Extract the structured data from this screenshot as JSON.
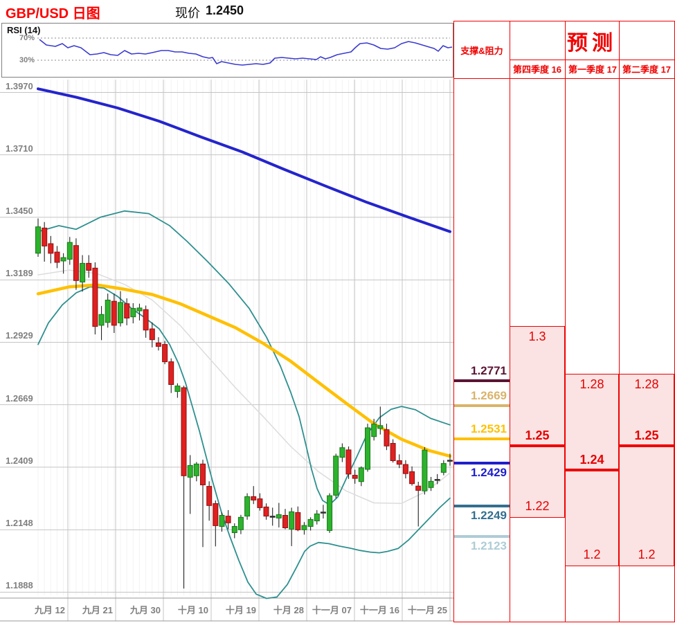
{
  "header": {
    "title": "GBP/USD 日图",
    "price_label": "现价",
    "price_value": "1.2450"
  },
  "rsi_panel": {
    "label": "RSI (14)",
    "upper_label": "70%",
    "lower_label": "30%",
    "upper_level": 70,
    "lower_level": 30,
    "points": [
      [
        57,
        67.5
      ],
      [
        67,
        57.5
      ],
      [
        80,
        55
      ],
      [
        90,
        60
      ],
      [
        98,
        52.5
      ],
      [
        107,
        56.3
      ],
      [
        117,
        52.5
      ],
      [
        130,
        40
      ],
      [
        140,
        41.3
      ],
      [
        150,
        43.8
      ],
      [
        160,
        40
      ],
      [
        170,
        38.8
      ],
      [
        180,
        47.5
      ],
      [
        190,
        41.3
      ],
      [
        200,
        42.5
      ],
      [
        210,
        41.3
      ],
      [
        220,
        43.8
      ],
      [
        233,
        47.5
      ],
      [
        243,
        47.5
      ],
      [
        253,
        45
      ],
      [
        263,
        45
      ],
      [
        273,
        42.5
      ],
      [
        283,
        41.3
      ],
      [
        293,
        36.3
      ],
      [
        302,
        33.8
      ],
      [
        307,
        35
      ],
      [
        313,
        23.8
      ],
      [
        320,
        27.5
      ],
      [
        330,
        25
      ],
      [
        340,
        22.5
      ],
      [
        350,
        21.3
      ],
      [
        360,
        22.5
      ],
      [
        370,
        23.8
      ],
      [
        380,
        22.5
      ],
      [
        390,
        25
      ],
      [
        397,
        33.8
      ],
      [
        407,
        35
      ],
      [
        417,
        33.8
      ],
      [
        427,
        32.5
      ],
      [
        437,
        33.8
      ],
      [
        447,
        32.5
      ],
      [
        457,
        31.3
      ],
      [
        463,
        36.3
      ],
      [
        470,
        32.5
      ],
      [
        477,
        35
      ],
      [
        487,
        40
      ],
      [
        497,
        42.5
      ],
      [
        507,
        45
      ],
      [
        513,
        52.5
      ],
      [
        520,
        60
      ],
      [
        530,
        61.3
      ],
      [
        540,
        57.5
      ],
      [
        550,
        51.3
      ],
      [
        560,
        50
      ],
      [
        570,
        52.5
      ],
      [
        580,
        60
      ],
      [
        590,
        63.8
      ],
      [
        600,
        61.3
      ],
      [
        610,
        57.5
      ],
      [
        620,
        53.8
      ],
      [
        627,
        51.3
      ],
      [
        633,
        46.3
      ],
      [
        640,
        56.3
      ],
      [
        647,
        52.5
      ],
      [
        653,
        53.8
      ]
    ]
  },
  "chart_data": {
    "type": "candlestick",
    "title": "GBP/USD 日图",
    "ylim": [
      1.1888,
      1.397
    ],
    "y_ticks": [
      "1.3970",
      "1.3710",
      "1.3450",
      "1.3189",
      "1.2929",
      "1.2669",
      "1.2409",
      "1.2148",
      "1.1888"
    ],
    "y_tick_values": [
      1.397,
      1.371,
      1.345,
      1.3189,
      1.2929,
      1.2669,
      1.2409,
      1.2148,
      1.1888
    ],
    "x_labels": [
      "九月 12",
      "九月 21",
      "九月 30",
      "十月 10",
      "十月 19",
      "十月 28",
      "十一月 07",
      "十一月 16",
      "十一月 25"
    ],
    "grid": true,
    "candles_ohlc": [
      [
        1.33,
        1.3445,
        1.3285,
        1.341
      ],
      [
        1.3405,
        1.343,
        1.3265,
        1.333
      ],
      [
        1.334,
        1.3372,
        1.3258,
        1.33
      ],
      [
        1.3305,
        1.333,
        1.3238,
        1.3262
      ],
      [
        1.3268,
        1.33,
        1.3215,
        1.3282
      ],
      [
        1.3275,
        1.3368,
        1.3252,
        1.3345
      ],
      [
        1.3332,
        1.3362,
        1.3148,
        1.3186
      ],
      [
        1.318,
        1.3292,
        1.314,
        1.3258
      ],
      [
        1.3258,
        1.3292,
        1.3198,
        1.3229
      ],
      [
        1.3238,
        1.3262,
        1.2962,
        1.2995
      ],
      [
        1.3,
        1.308,
        1.2938,
        1.3045
      ],
      [
        1.3012,
        1.3132,
        1.299,
        1.3105
      ],
      [
        1.31,
        1.3132,
        1.2968,
        1.3
      ],
      [
        1.301,
        1.3142,
        1.2995,
        1.3095
      ],
      [
        1.309,
        1.3112,
        1.3,
        1.303
      ],
      [
        1.3035,
        1.3092,
        1.3008,
        1.307
      ],
      [
        1.306,
        1.309,
        1.302,
        1.3072
      ],
      [
        1.3065,
        1.3082,
        1.2948,
        1.298
      ],
      [
        1.2985,
        1.3012,
        1.2908,
        1.294
      ],
      [
        1.2926,
        1.295,
        1.2895,
        1.2912
      ],
      [
        1.292,
        1.2935,
        1.2838,
        1.2848
      ],
      [
        1.2848,
        1.2862,
        1.2718,
        1.2753
      ],
      [
        1.2724,
        1.2758,
        1.2698,
        1.2747
      ],
      [
        1.274,
        1.2748,
        1.1903,
        1.2373
      ],
      [
        1.2367,
        1.2459,
        1.2214,
        1.2416
      ],
      [
        1.2373,
        1.243,
        1.235,
        1.2422
      ],
      [
        1.2422,
        1.244,
        1.2076,
        1.2335
      ],
      [
        1.2329,
        1.235,
        1.2186,
        1.2249
      ],
      [
        1.2257,
        1.227,
        1.2079,
        1.2165
      ],
      [
        1.2162,
        1.222,
        1.214,
        1.2208
      ],
      [
        1.2205,
        1.223,
        1.215,
        1.2177
      ],
      [
        1.2136,
        1.2175,
        1.2113,
        1.2162
      ],
      [
        1.2148,
        1.221,
        1.213,
        1.22
      ],
      [
        1.2205,
        1.23,
        1.219,
        1.2286
      ],
      [
        1.2286,
        1.233,
        1.2255,
        1.2272
      ],
      [
        1.2277,
        1.23,
        1.2228,
        1.224
      ],
      [
        1.2243,
        1.2258,
        1.219,
        1.2205
      ],
      [
        1.22,
        1.224,
        1.2165,
        1.2205
      ],
      [
        1.2197,
        1.226,
        1.2158,
        1.2211
      ],
      [
        1.2208,
        1.2235,
        1.215,
        1.2156
      ],
      [
        1.2151,
        1.224,
        1.208,
        1.2223
      ],
      [
        1.222,
        1.2245,
        1.2142,
        1.2148
      ],
      [
        1.2148,
        1.218,
        1.2128,
        1.2166
      ],
      [
        1.2162,
        1.22,
        1.2145,
        1.2191
      ],
      [
        1.2185,
        1.223,
        1.217,
        1.2214
      ],
      [
        1.222,
        1.2252,
        1.2195,
        1.2222
      ],
      [
        1.2145,
        1.23,
        1.2135,
        1.229
      ],
      [
        1.2292,
        1.2465,
        1.228,
        1.2455
      ],
      [
        1.245,
        1.2508,
        1.243,
        1.249
      ],
      [
        1.2481,
        1.2495,
        1.236,
        1.238
      ],
      [
        1.2375,
        1.2398,
        1.234,
        1.2362
      ],
      [
        1.2349,
        1.2412,
        1.233,
        1.2406
      ],
      [
        1.24,
        1.259,
        1.239,
        1.2573
      ],
      [
        1.2536,
        1.261,
        1.252,
        1.2588
      ],
      [
        1.257,
        1.2661,
        1.2545,
        1.2582
      ],
      [
        1.2565,
        1.259,
        1.248,
        1.2497
      ],
      [
        1.2508,
        1.2525,
        1.2428,
        1.2436
      ],
      [
        1.2436,
        1.2462,
        1.2405,
        1.2421
      ],
      [
        1.242,
        1.2438,
        1.2362,
        1.2382
      ],
      [
        1.239,
        1.2412,
        1.2332,
        1.234
      ],
      [
        1.233,
        1.2348,
        1.2162,
        1.2312
      ],
      [
        1.231,
        1.2492,
        1.2295,
        1.248
      ],
      [
        1.2324,
        1.2368,
        1.231,
        1.235
      ],
      [
        1.2358,
        1.238,
        1.2338,
        1.2358
      ],
      [
        1.2387,
        1.2438,
        1.2375,
        1.2424
      ],
      [
        1.2437,
        1.2465,
        1.2415,
        1.2438
      ]
    ],
    "overlays": {
      "ma_blue": [
        [
          55,
          1.3985
        ],
        [
          110,
          1.395
        ],
        [
          170,
          1.3905
        ],
        [
          230,
          1.385
        ],
        [
          290,
          1.3785
        ],
        [
          350,
          1.3722
        ],
        [
          410,
          1.365
        ],
        [
          470,
          1.358
        ],
        [
          530,
          1.3512
        ],
        [
          590,
          1.345
        ],
        [
          650,
          1.339
        ]
      ],
      "ma_yellow": [
        [
          55,
          1.3131
        ],
        [
          100,
          1.316
        ],
        [
          140,
          1.3168
        ],
        [
          180,
          1.315
        ],
        [
          220,
          1.3128
        ],
        [
          260,
          1.309
        ],
        [
          300,
          1.304
        ],
        [
          340,
          1.299
        ],
        [
          380,
          1.2925
        ],
        [
          420,
          1.285
        ],
        [
          460,
          1.2762
        ],
        [
          500,
          1.2675
        ],
        [
          540,
          1.259
        ],
        [
          580,
          1.2525
        ],
        [
          620,
          1.2478
        ],
        [
          650,
          1.2455
        ]
      ],
      "bb_upper": [
        [
          55,
          1.339
        ],
        [
          85,
          1.3415
        ],
        [
          110,
          1.34
        ],
        [
          145,
          1.345
        ],
        [
          180,
          1.3476
        ],
        [
          215,
          1.3465
        ],
        [
          245,
          1.3415
        ],
        [
          270,
          1.335
        ],
        [
          300,
          1.3265
        ],
        [
          330,
          1.3175
        ],
        [
          360,
          1.307
        ],
        [
          385,
          1.295
        ],
        [
          405,
          1.283
        ],
        [
          420,
          1.272
        ],
        [
          432,
          1.262
        ],
        [
          442,
          1.25
        ],
        [
          450,
          1.24
        ],
        [
          458,
          1.232
        ],
        [
          466,
          1.227
        ],
        [
          476,
          1.2252
        ],
        [
          488,
          1.2285
        ],
        [
          500,
          1.236
        ],
        [
          515,
          1.245
        ],
        [
          530,
          1.2545
        ],
        [
          548,
          1.2615
        ],
        [
          565,
          1.265
        ],
        [
          580,
          1.2662
        ],
        [
          600,
          1.2648
        ],
        [
          622,
          1.2612
        ],
        [
          650,
          1.2585
        ]
      ],
      "bb_lower": [
        [
          55,
          1.292
        ],
        [
          70,
          1.301
        ],
        [
          90,
          1.3085
        ],
        [
          110,
          1.3135
        ],
        [
          130,
          1.316
        ],
        [
          150,
          1.3155
        ],
        [
          170,
          1.312
        ],
        [
          190,
          1.307
        ],
        [
          210,
          1.303
        ],
        [
          230,
          1.2985
        ],
        [
          245,
          1.292
        ],
        [
          258,
          1.284
        ],
        [
          268,
          1.276
        ],
        [
          278,
          1.266
        ],
        [
          288,
          1.256
        ],
        [
          298,
          1.245
        ],
        [
          308,
          1.234
        ],
        [
          320,
          1.222
        ],
        [
          332,
          1.212
        ],
        [
          345,
          1.202
        ],
        [
          358,
          1.193
        ],
        [
          370,
          1.188
        ],
        [
          385,
          1.1862
        ],
        [
          400,
          1.1868
        ],
        [
          415,
          1.192
        ],
        [
          428,
          1.199
        ],
        [
          440,
          1.2058
        ],
        [
          448,
          1.208
        ],
        [
          460,
          1.2095
        ],
        [
          475,
          1.209
        ],
        [
          490,
          1.208
        ],
        [
          505,
          1.2072
        ],
        [
          520,
          1.2062
        ],
        [
          535,
          1.2055
        ],
        [
          548,
          1.2052
        ],
        [
          560,
          1.2058
        ],
        [
          575,
          1.207
        ],
        [
          590,
          1.2105
        ],
        [
          605,
          1.215
        ],
        [
          620,
          1.2195
        ],
        [
          635,
          1.224
        ],
        [
          650,
          1.228
        ]
      ],
      "bb_mid": [
        [
          55,
          1.321
        ],
        [
          100,
          1.323
        ],
        [
          140,
          1.3215
        ],
        [
          180,
          1.317
        ],
        [
          220,
          1.3105
        ],
        [
          260,
          1.3
        ],
        [
          300,
          1.287
        ],
        [
          340,
          1.274
        ],
        [
          380,
          1.262
        ],
        [
          420,
          1.2495
        ],
        [
          460,
          1.239
        ],
        [
          500,
          1.231
        ],
        [
          540,
          1.226
        ],
        [
          580,
          1.2258
        ],
        [
          610,
          1.23
        ],
        [
          635,
          1.235
        ],
        [
          650,
          1.2385
        ]
      ]
    }
  },
  "sr_panel": {
    "header": "支撑&阻力",
    "levels": [
      {
        "label": "1.2771",
        "value": 1.2771,
        "color": "#5a1433",
        "label_side": "above"
      },
      {
        "label": "1.2669",
        "value": 1.2669,
        "color": "#d9b36a",
        "label_side": "above"
      },
      {
        "label": "1.2531",
        "value": 1.2531,
        "color": "#ffc000",
        "label_side": "above"
      },
      {
        "label": "1.2429",
        "value": 1.2429,
        "color": "#1f1fcc",
        "label_side": "below"
      },
      {
        "label": "1.2249",
        "value": 1.2249,
        "color": "#336f8f",
        "label_side": "below"
      },
      {
        "label": "1.2123",
        "value": 1.2123,
        "color": "#afccd6",
        "label_side": "below"
      }
    ]
  },
  "forecast": {
    "title": "预测",
    "columns": [
      {
        "label": "第四季度 16",
        "high": 1.3,
        "mid": 1.25,
        "low": 1.22,
        "high_label": "1.3",
        "mid_label": "1.25",
        "low_label": "1.22"
      },
      {
        "label": "第一季度 17",
        "high": 1.28,
        "mid": 1.24,
        "low": 1.2,
        "high_label": "1.28",
        "mid_label": "1.24",
        "low_label": "1.2"
      },
      {
        "label": "第二季度 17",
        "high": 1.28,
        "mid": 1.25,
        "low": 1.2,
        "high_label": "1.28",
        "mid_label": "1.25",
        "low_label": "1.2"
      }
    ]
  },
  "colors": {
    "accent_red": "#f00000",
    "title_red": "#ff0000",
    "pink_fill": "#fbe3e3",
    "grid": "#c4c4c4",
    "grid_minor": "#f3f3f3",
    "axis_text": "#7f7f7f",
    "candle_up": "#2db22d",
    "candle_up_edge": "#157815",
    "candle_down": "#e02020",
    "candle_down_edge": "#8f1010",
    "wick": "#222222",
    "doji": "#333333",
    "ma_blue": "#2424cc",
    "ma_yellow": "#ffc000",
    "band_teal": "#2e8f8f",
    "band_mid": "#dcdcdc",
    "rsi_line": "#3a3ad0"
  }
}
